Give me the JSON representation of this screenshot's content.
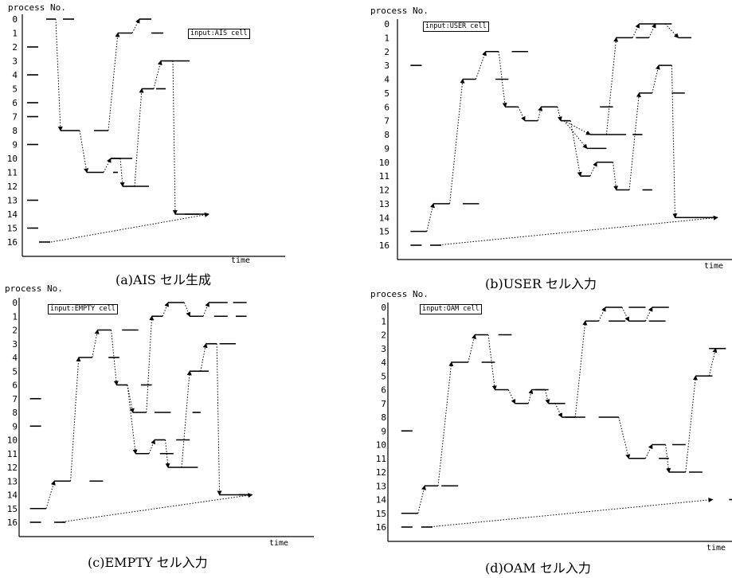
{
  "chart_data": [
    {
      "type": "line",
      "caption": "(a)AIS セル生成",
      "legend": "input:AIS cell",
      "ylabel": "process No.",
      "xlabel": "time",
      "yticks": [
        "0",
        "1",
        "2",
        "3",
        "4",
        "5",
        "6",
        "7",
        "8",
        "9",
        "10",
        "11",
        "12",
        "13",
        "14",
        "15",
        "16"
      ],
      "ylim": [
        0,
        16
      ],
      "xlim": [
        0,
        100
      ],
      "idle_marks": [
        [
          2,
          2
        ],
        [
          2,
          4
        ],
        [
          2,
          6
        ],
        [
          2,
          7
        ],
        [
          2,
          9
        ],
        [
          2,
          13
        ],
        [
          2,
          15
        ],
        [
          7,
          16
        ],
        [
          17,
          0
        ]
      ],
      "trace": [
        [
          10,
          0
        ],
        [
          14,
          0
        ],
        [
          16,
          8
        ],
        [
          24,
          8
        ],
        [
          27,
          11
        ],
        [
          34,
          11
        ],
        [
          37,
          10
        ],
        [
          41,
          10
        ],
        [
          42,
          12
        ],
        [
          47,
          12
        ],
        [
          50,
          5
        ],
        [
          55,
          5
        ],
        [
          58,
          3
        ],
        [
          63,
          3
        ],
        [
          64,
          14
        ],
        [
          78,
          14
        ]
      ],
      "returns": [
        [
          12,
          16
        ],
        [
          78,
          14
        ]
      ],
      "branches": [
        [
          [
            30,
            8
          ],
          [
            36,
            8
          ],
          [
            40,
            1
          ],
          [
            46,
            1
          ],
          [
            49,
            0
          ],
          [
            54,
            0
          ]
        ],
        [
          [
            37,
            10
          ],
          [
            46,
            10
          ]
        ],
        [
          [
            38,
            11
          ],
          [
            40,
            11
          ]
        ],
        [
          [
            47,
            12
          ],
          [
            53,
            12
          ]
        ],
        [
          [
            54,
            1
          ],
          [
            59,
            1
          ]
        ],
        [
          [
            63,
            3
          ],
          [
            70,
            3
          ]
        ],
        [
          [
            56,
            5
          ],
          [
            60,
            5
          ]
        ],
        [
          [
            68,
            14
          ],
          [
            74,
            14
          ]
        ]
      ]
    },
    {
      "type": "line",
      "caption": "(b)USER セル入力",
      "legend": "input:USER cell",
      "ylabel": "process No.",
      "xlabel": "time",
      "yticks": [
        "0",
        "1",
        "2",
        "3",
        "4",
        "5",
        "6",
        "7",
        "8",
        "9",
        "10",
        "11",
        "12",
        "13",
        "14",
        "15",
        "16"
      ],
      "ylim": [
        0,
        16
      ],
      "xlim": [
        0,
        100
      ],
      "idle_marks": [
        [
          4,
          3
        ],
        [
          4,
          16
        ],
        [
          10,
          16
        ]
      ],
      "trace": [
        [
          4,
          15
        ],
        [
          9,
          15
        ],
        [
          11,
          13
        ],
        [
          16,
          13
        ],
        [
          20,
          4
        ],
        [
          24,
          4
        ],
        [
          27,
          2
        ],
        [
          31,
          2
        ],
        [
          33,
          6
        ],
        [
          37,
          6
        ],
        [
          39,
          7
        ],
        [
          43,
          7
        ],
        [
          44,
          6
        ],
        [
          49,
          6
        ],
        [
          50,
          7
        ],
        [
          53,
          7
        ],
        [
          56,
          11
        ],
        [
          59,
          11
        ],
        [
          61,
          10
        ],
        [
          66,
          10
        ],
        [
          67,
          12
        ],
        [
          71,
          12
        ],
        [
          74,
          5
        ],
        [
          78,
          5
        ],
        [
          80,
          3
        ],
        [
          84,
          3
        ],
        [
          85,
          14
        ],
        [
          98,
          14
        ]
      ],
      "returns": [
        [
          12,
          16
        ],
        [
          98,
          14
        ]
      ],
      "branches": [
        [
          [
            51,
            7
          ],
          [
            59,
            8
          ],
          [
            64,
            8
          ],
          [
            67,
            1
          ],
          [
            72,
            1
          ],
          [
            74,
            0
          ],
          [
            79,
            0
          ]
        ],
        [
          [
            51,
            7
          ],
          [
            58,
            9
          ],
          [
            64,
            9
          ]
        ],
        [
          [
            73,
            1
          ],
          [
            77,
            1
          ],
          [
            79,
            0
          ],
          [
            84,
            0
          ]
        ],
        [
          [
            64,
            8
          ],
          [
            70,
            8
          ]
        ],
        [
          [
            72,
            8
          ],
          [
            75,
            8
          ]
        ],
        [
          [
            20,
            13
          ],
          [
            25,
            13
          ]
        ],
        [
          [
            30,
            4
          ],
          [
            34,
            4
          ]
        ],
        [
          [
            35,
            2
          ],
          [
            40,
            2
          ]
        ],
        [
          [
            82,
            0
          ],
          [
            86,
            1
          ],
          [
            90,
            1
          ]
        ],
        [
          [
            84,
            5
          ],
          [
            88,
            5
          ]
        ],
        [
          [
            75,
            12
          ],
          [
            78,
            12
          ]
        ],
        [
          [
            62,
            6
          ],
          [
            66,
            6
          ]
        ],
        [
          [
            92,
            14
          ],
          [
            96,
            14
          ]
        ]
      ]
    },
    {
      "type": "line",
      "caption": "(c)EMPTY セル入力",
      "legend": "input:EMPTY cell",
      "ylabel": "process No.",
      "xlabel": "time",
      "yticks": [
        "0",
        "1",
        "2",
        "3",
        "4",
        "5",
        "6",
        "7",
        "8",
        "9",
        "10",
        "11",
        "12",
        "13",
        "14",
        "15",
        "16"
      ],
      "ylim": [
        0,
        16
      ],
      "xlim": [
        0,
        100
      ],
      "idle_marks": [
        [
          4,
          7
        ],
        [
          4,
          9
        ],
        [
          4,
          16
        ],
        [
          13,
          16
        ]
      ],
      "trace": [
        [
          4,
          15
        ],
        [
          10,
          15
        ],
        [
          13,
          13
        ],
        [
          19,
          13
        ],
        [
          22,
          4
        ],
        [
          27,
          4
        ],
        [
          29,
          2
        ],
        [
          34,
          2
        ],
        [
          36,
          6
        ],
        [
          40,
          6
        ],
        [
          42,
          8
        ],
        [
          47,
          8
        ],
        [
          49,
          1
        ],
        [
          53,
          1
        ],
        [
          55,
          0
        ],
        [
          61,
          0
        ],
        [
          63,
          1
        ],
        [
          68,
          1
        ],
        [
          70,
          0
        ],
        [
          77,
          0
        ]
      ],
      "returns": [
        [
          15,
          16
        ],
        [
          86,
          14
        ]
      ],
      "branches": [
        [
          [
            40,
            6
          ],
          [
            43,
            11
          ],
          [
            48,
            11
          ],
          [
            50,
            10
          ],
          [
            54,
            10
          ],
          [
            55,
            12
          ],
          [
            60,
            12
          ],
          [
            63,
            5
          ],
          [
            67,
            5
          ],
          [
            69,
            3
          ],
          [
            73,
            3
          ],
          [
            74,
            14
          ],
          [
            86,
            14
          ]
        ],
        [
          [
            26,
            13
          ],
          [
            31,
            13
          ]
        ],
        [
          [
            33,
            4
          ],
          [
            37,
            4
          ]
        ],
        [
          [
            38,
            2
          ],
          [
            44,
            2
          ]
        ],
        [
          [
            45,
            6
          ],
          [
            49,
            6
          ]
        ],
        [
          [
            50,
            8
          ],
          [
            56,
            8
          ]
        ],
        [
          [
            52,
            11
          ],
          [
            57,
            11
          ]
        ],
        [
          [
            58,
            10
          ],
          [
            63,
            10
          ]
        ],
        [
          [
            60,
            12
          ],
          [
            66,
            12
          ]
        ],
        [
          [
            64,
            8
          ],
          [
            67,
            8
          ]
        ],
        [
          [
            66,
            5
          ],
          [
            70,
            5
          ]
        ],
        [
          [
            74,
            3
          ],
          [
            80,
            3
          ]
        ],
        [
          [
            72,
            1
          ],
          [
            77,
            1
          ]
        ],
        [
          [
            79,
            0
          ],
          [
            84,
            0
          ]
        ],
        [
          [
            80,
            1
          ],
          [
            84,
            1
          ]
        ],
        [
          [
            81,
            14
          ],
          [
            85,
            14
          ]
        ]
      ]
    },
    {
      "type": "line",
      "caption": "(d)OAM セル入力",
      "legend": "input:OAM cell",
      "ylabel": "process No.",
      "xlabel": "time",
      "yticks": [
        "0",
        "1",
        "2",
        "3",
        "4",
        "5",
        "6",
        "7",
        "8",
        "9",
        "10",
        "11",
        "12",
        "13",
        "14",
        "15",
        "16"
      ],
      "ylim": [
        0,
        16
      ],
      "xlim": [
        0,
        100
      ],
      "idle_marks": [
        [
          4,
          9
        ],
        [
          4,
          16
        ],
        [
          10,
          16
        ]
      ],
      "trace": [
        [
          4,
          15
        ],
        [
          9,
          15
        ],
        [
          11,
          13
        ],
        [
          15,
          13
        ],
        [
          19,
          4
        ],
        [
          24,
          4
        ],
        [
          26,
          2
        ],
        [
          30,
          2
        ],
        [
          32,
          6
        ],
        [
          36,
          6
        ],
        [
          38,
          7
        ],
        [
          42,
          7
        ],
        [
          43,
          6
        ],
        [
          47,
          6
        ],
        [
          48,
          7
        ],
        [
          50,
          7
        ],
        [
          52,
          8
        ],
        [
          56,
          8
        ],
        [
          59,
          1
        ],
        [
          63,
          1
        ],
        [
          65,
          0
        ],
        [
          70,
          0
        ],
        [
          72,
          1
        ],
        [
          77,
          1
        ],
        [
          79,
          0
        ],
        [
          84,
          0
        ]
      ],
      "returns": [
        [
          12,
          16
        ],
        [
          97,
          14
        ]
      ],
      "branches": [
        [
          [
            63,
            8
          ],
          [
            69,
            8
          ],
          [
            72,
            11
          ],
          [
            77,
            11
          ],
          [
            79,
            10
          ],
          [
            83,
            10
          ],
          [
            84,
            12
          ],
          [
            89,
            12
          ],
          [
            92,
            5
          ],
          [
            96,
            5
          ],
          [
            98,
            3
          ],
          [
            101,
            3
          ]
        ],
        [
          [
            16,
            13
          ],
          [
            21,
            13
          ]
        ],
        [
          [
            28,
            4
          ],
          [
            32,
            4
          ]
        ],
        [
          [
            33,
            2
          ],
          [
            37,
            2
          ]
        ],
        [
          [
            44,
            6
          ],
          [
            48,
            6
          ]
        ],
        [
          [
            50,
            7
          ],
          [
            53,
            7
          ]
        ],
        [
          [
            53,
            8
          ],
          [
            59,
            8
          ]
        ],
        [
          [
            66,
            1
          ],
          [
            71,
            1
          ]
        ],
        [
          [
            72,
            0
          ],
          [
            77,
            0
          ]
        ],
        [
          [
            78,
            1
          ],
          [
            83,
            1
          ]
        ],
        [
          [
            81,
            11
          ],
          [
            84,
            11
          ]
        ],
        [
          [
            85,
            10
          ],
          [
            89,
            10
          ]
        ],
        [
          [
            90,
            12
          ],
          [
            94,
            12
          ]
        ],
        [
          [
            96,
            3
          ],
          [
            101,
            3
          ]
        ],
        [
          [
            102,
            14
          ],
          [
            104,
            14
          ]
        ],
        [
          [
            93,
            5
          ],
          [
            97,
            5
          ]
        ]
      ]
    }
  ]
}
